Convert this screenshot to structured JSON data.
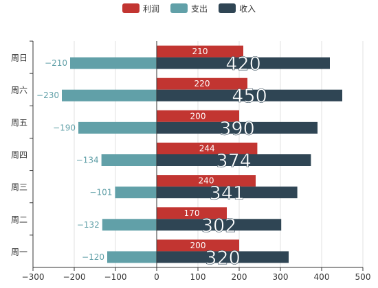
{
  "chart_data": {
    "type": "bar",
    "orientation": "horizontal",
    "categories": [
      "周一",
      "周二",
      "周三",
      "周四",
      "周五",
      "周六",
      "周日"
    ],
    "series": [
      {
        "name": "利润",
        "color": "#c23531",
        "values": [
          200,
          170,
          240,
          244,
          200,
          220,
          210
        ]
      },
      {
        "name": "支出",
        "color": "#61a0a8",
        "values": [
          -120,
          -132,
          -101,
          -134,
          -190,
          -230,
          -210
        ]
      },
      {
        "name": "收入",
        "color": "#2f4554",
        "values": [
          320,
          302,
          341,
          374,
          390,
          450,
          420
        ]
      }
    ],
    "xlim": [
      -300,
      500
    ],
    "x_ticks": [
      "−300",
      "−200",
      "−100",
      "0",
      "100",
      "200",
      "300",
      "400",
      "500"
    ],
    "legend_position": "top-center",
    "grid": true
  }
}
